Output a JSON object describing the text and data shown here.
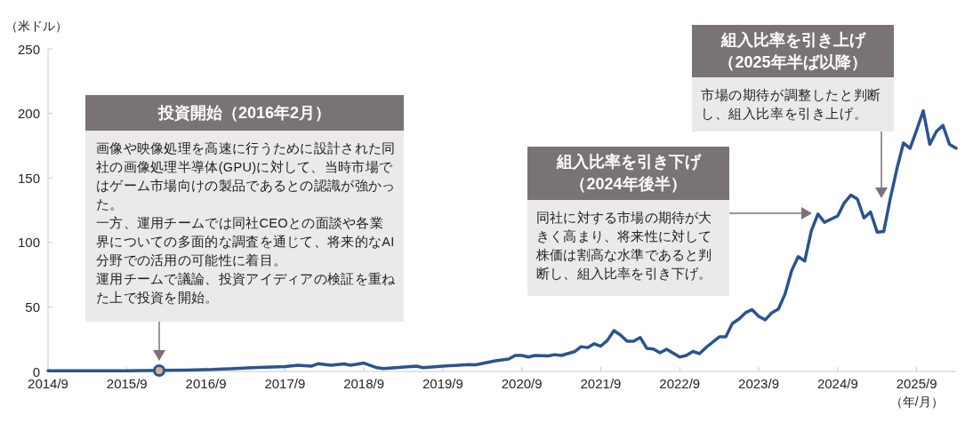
{
  "chart_data": {
    "type": "line",
    "ylabel": "（米ドル）",
    "xlabel": "（年/月）",
    "xlim": [
      "2014-09",
      "2026-03"
    ],
    "ylim": [
      0,
      250
    ],
    "xticks": [
      {
        "value": "2014-09",
        "label": "2014/9"
      },
      {
        "value": "2015-09",
        "label": "2015/9"
      },
      {
        "value": "2016-09",
        "label": "2016/9"
      },
      {
        "value": "2017-09",
        "label": "2017/9"
      },
      {
        "value": "2018-09",
        "label": "2018/9"
      },
      {
        "value": "2019-09",
        "label": "2019/9"
      },
      {
        "value": "2020-09",
        "label": "2020/9"
      },
      {
        "value": "2021-09",
        "label": "2021/9"
      },
      {
        "value": "2022-09",
        "label": "2022/9"
      },
      {
        "value": "2023-09",
        "label": "2023/9"
      },
      {
        "value": "2024-09",
        "label": "2024/9"
      },
      {
        "value": "2025-09",
        "label": "2025/9"
      }
    ],
    "yticks": [
      0,
      50,
      100,
      150,
      200,
      250
    ],
    "x": [
      "2014-09",
      "2015-03",
      "2015-09",
      "2016-02",
      "2016-06",
      "2016-10",
      "2017-04",
      "2017-09",
      "2017-11",
      "2018-01",
      "2018-02",
      "2018-04",
      "2018-06",
      "2018-07",
      "2018-09",
      "2018-11",
      "2018-12",
      "2019-05",
      "2019-06",
      "2019-09",
      "2020-01",
      "2020-02",
      "2020-05",
      "2020-07",
      "2020-08",
      "2020-09",
      "2020-10",
      "2020-11",
      "2021-01",
      "2021-02",
      "2021-03",
      "2021-05",
      "2021-06",
      "2021-07",
      "2021-08",
      "2021-09",
      "2021-10",
      "2021-11",
      "2021-12",
      "2022-01",
      "2022-02",
      "2022-03",
      "2022-04",
      "2022-05",
      "2022-06",
      "2022-07",
      "2022-09",
      "2022-10",
      "2022-11",
      "2022-12",
      "2023-01",
      "2023-03",
      "2023-04",
      "2023-05",
      "2023-06",
      "2023-07",
      "2023-08",
      "2023-09",
      "2023-10",
      "2023-11",
      "2023-12",
      "2024-01",
      "2024-02",
      "2024-03",
      "2024-04",
      "2024-05",
      "2024-06",
      "2024-07",
      "2024-09",
      "2024-10",
      "2024-11",
      "2024-12",
      "2025-01",
      "2025-02",
      "2025-03",
      "2025-04",
      "2025-05",
      "2025-06",
      "2025-07",
      "2025-08",
      "2025-09",
      "2025-10",
      "2025-11",
      "2025-12",
      "2026-01",
      "2026-02",
      "2026-03"
    ],
    "series": [
      {
        "color": "#2a5490",
        "values": [
          0.5,
          0.5,
          0.6,
          0.8,
          1.1,
          1.5,
          2.9,
          3.8,
          4.8,
          4.1,
          6,
          4.8,
          5.8,
          4.8,
          6.5,
          2.9,
          2.2,
          4.1,
          2.9,
          4.1,
          5.3,
          5.2,
          8.3,
          9.6,
          12.4,
          12.4,
          11.2,
          12.4,
          12,
          13,
          12.4,
          15.3,
          19.2,
          18.5,
          21.5,
          19.6,
          24,
          31.7,
          28.2,
          23.4,
          23.4,
          26.3,
          17.9,
          17.4,
          14.4,
          17.2,
          11.2,
          12.4,
          15.5,
          13.8,
          18.6,
          26.8,
          26.8,
          37.2,
          40.6,
          45.5,
          47.9,
          42.7,
          40,
          45.5,
          48.4,
          60,
          78,
          89,
          85.6,
          109,
          122,
          115.6,
          120.5,
          130.6,
          136.7,
          133.6,
          119,
          123.5,
          108,
          108.4,
          134,
          157,
          177,
          173,
          187,
          202,
          176,
          186,
          190.7,
          176,
          173
        ]
      }
    ],
    "annotations": [
      "投資開始（2016年2月）",
      "画像や映像処理を高速に行うために設計された同社の画像処理半導体(GPU)に対して、当時市場ではゲーム市場向けの製品であるとの認識が強かった。",
      "一方、運用チームでは同社CEOとの面談や各業界についての多面的な調査を通じて、将来的なAI分野での活用の可能性に着目。",
      "運用チームで議論、投資アイディアの検証を重ねた上で投資を開始。",
      "組入比率を引き下げ（2024年後半）",
      "同社に対する市場の期待が大きく高まり、将来性に対して株価は割高な水準であると判断し、組入比率を引き下げ。",
      "組入比率を引き上げ（2025年半ば以降）",
      "市場の期待が調整したと判断し、組入比率を引き上げ。"
    ]
  }
}
